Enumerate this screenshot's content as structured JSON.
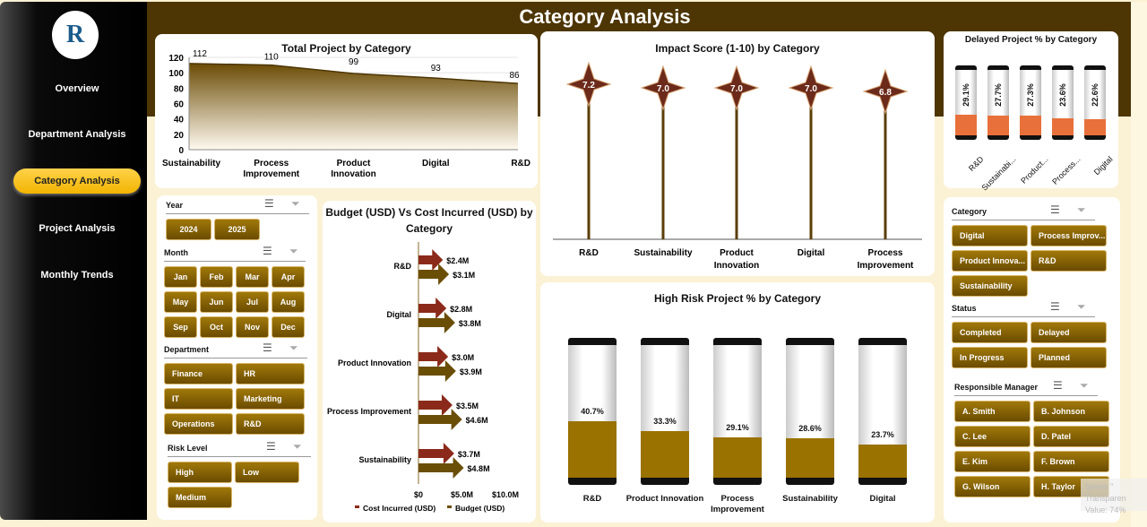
{
  "page": {
    "title": "Category Analysis",
    "logo_text": "R"
  },
  "nav": [
    {
      "label": "Overview"
    },
    {
      "label": "Department Analysis"
    },
    {
      "label": "Category Analysis",
      "active": true
    },
    {
      "label": "Project Analysis"
    },
    {
      "label": "Monthly Trends"
    }
  ],
  "colors": {
    "header": "#4d3504",
    "button": "#8a6405",
    "cost": "#8b2a1a",
    "budget": "#6b4e05",
    "delayed_fill": "#e8703a",
    "risk_fill": "#9a7200",
    "star": "#6b2a1a"
  },
  "chart_data": [
    {
      "type": "area",
      "title": "Total Project by Category",
      "categories": [
        "Sustainability",
        "Process Improvement",
        "Product Innovation",
        "Digital",
        "R&D"
      ],
      "values": [
        112,
        110,
        99,
        93,
        86
      ],
      "ylim": [
        0,
        120
      ],
      "yticks": [
        "0",
        "20",
        "40",
        "60",
        "80",
        "100",
        "120"
      ],
      "grid": true
    },
    {
      "type": "scatter",
      "title": "Impact Score (1-10) by Category",
      "categories": [
        "R&D",
        "Sustainability",
        "Product Innovation",
        "Digital",
        "Process Improvement"
      ],
      "values": [
        7.2,
        7.0,
        7.0,
        7.0,
        6.8
      ],
      "labels": [
        "7.2",
        "7.0",
        "7.0",
        "7.0",
        "6.8"
      ]
    },
    {
      "type": "bar",
      "title": "Delayed Project % by Category",
      "categories": [
        "R&D",
        "Sustainabi...",
        "Product...",
        "Process...",
        "Digital"
      ],
      "values": [
        29.1,
        27.7,
        27.3,
        23.6,
        22.6
      ],
      "labels": [
        "29.1%",
        "27.7%",
        "27.3%",
        "23.6%",
        "22.6%"
      ]
    },
    {
      "type": "bar",
      "title": "Budget (USD) Vs Cost Incurred (USD) by Category",
      "orientation": "horizontal",
      "categories": [
        "R&D",
        "Digital",
        "Product Innovation",
        "Process Improvement",
        "Sustainability"
      ],
      "series": [
        {
          "name": "Cost Incurred (USD)",
          "values": [
            2.4,
            2.8,
            3.0,
            3.5,
            3.7
          ],
          "labels": [
            "$2.4M",
            "$2.8M",
            "$3.0M",
            "$3.5M",
            "$3.7M"
          ]
        },
        {
          "name": "Budget (USD)",
          "values": [
            3.1,
            3.8,
            3.9,
            4.6,
            4.8
          ],
          "labels": [
            "$3.1M",
            "$3.8M",
            "$3.9M",
            "$4.6M",
            "$4.8M"
          ]
        }
      ],
      "xlim": [
        0,
        10
      ],
      "xticks": [
        "$0",
        "$5.0M",
        "$10.0M"
      ],
      "legend": "bottom"
    },
    {
      "type": "bar",
      "title": "High Risk Project % by Category",
      "categories": [
        "R&D",
        "Product Innovation",
        "Process Improvement",
        "Sustainability",
        "Digital"
      ],
      "values": [
        40.7,
        33.3,
        29.1,
        28.6,
        23.7
      ],
      "labels": [
        "40.7%",
        "33.3%",
        "29.1%",
        "28.6%",
        "23.7%"
      ]
    }
  ],
  "slicers_left": [
    {
      "title": "Year",
      "items": [
        "2024",
        "2025"
      ]
    },
    {
      "title": "Month",
      "items": [
        "Jan",
        "Feb",
        "Mar",
        "Apr",
        "May",
        "Jun",
        "Jul",
        "Aug",
        "Sep",
        "Oct",
        "Nov",
        "Dec"
      ]
    },
    {
      "title": "Department",
      "items": [
        "Finance",
        "HR",
        "IT",
        "Marketing",
        "Operations",
        "R&D"
      ]
    },
    {
      "title": "Risk Level",
      "items": [
        "High",
        "Low",
        "Medium"
      ]
    }
  ],
  "slicers_right": [
    {
      "title": "Category",
      "items": [
        "Digital",
        "Process Improv...",
        "Product Innova...",
        "R&D",
        "Sustainability"
      ]
    },
    {
      "title": "Status",
      "items": [
        "Completed",
        "Delayed",
        "In Progress",
        "Planned"
      ]
    },
    {
      "title": "Responsible Manager",
      "items": [
        "A. Smith",
        "B. Johnson",
        "C. Lee",
        "D. Patel",
        "E. Kim",
        "F. Brown",
        "G. Wilson",
        "H. Taylor"
      ]
    }
  ],
  "tooltip": {
    "line1": "Series \" Transparen",
    "line2": "Value: 74%"
  }
}
